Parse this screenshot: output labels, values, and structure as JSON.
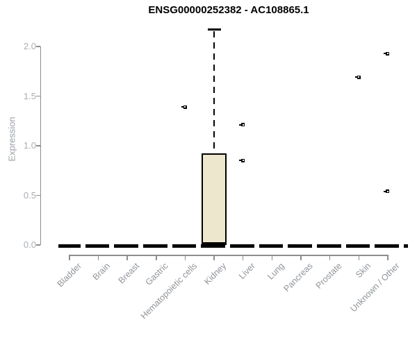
{
  "chart_data": {
    "type": "boxplot",
    "title": "ENSG00000252382 - AC108865.1",
    "ylabel": "Expression",
    "ylim": [
      0,
      2.2
    ],
    "yticks": [
      "0.0",
      "0.5",
      "1.0",
      "1.5",
      "2.0"
    ],
    "grid": false,
    "legend": "none",
    "categories": [
      "Bladder",
      "Brain",
      "Breast",
      "Gastric",
      "Hematopoietic cells",
      "Kidney",
      "Liver",
      "Lung",
      "Pancreas",
      "Prostate",
      "Skin",
      "Unknown / Other"
    ],
    "boxes": [
      {
        "category": "Bladder",
        "whisker_low": 0,
        "q1": 0,
        "median": 0,
        "q3": 0,
        "whisker_high": 0,
        "outliers": []
      },
      {
        "category": "Brain",
        "whisker_low": 0,
        "q1": 0,
        "median": 0,
        "q3": 0,
        "whisker_high": 0,
        "outliers": []
      },
      {
        "category": "Breast",
        "whisker_low": 0,
        "q1": 0,
        "median": 0,
        "q3": 0,
        "whisker_high": 0,
        "outliers": []
      },
      {
        "category": "Gastric",
        "whisker_low": 0,
        "q1": 0,
        "median": 0,
        "q3": 0,
        "whisker_high": 0,
        "outliers": []
      },
      {
        "category": "Hematopoietic cells",
        "whisker_low": 0,
        "q1": 0,
        "median": 0,
        "q3": 0,
        "whisker_high": 0,
        "outliers": [
          1.39
        ]
      },
      {
        "category": "Kidney",
        "whisker_low": 0,
        "q1": 0,
        "median": 0,
        "q3": 0.92,
        "whisker_high": 2.17,
        "outliers": []
      },
      {
        "category": "Liver",
        "whisker_low": 0,
        "q1": 0,
        "median": 0,
        "q3": 0,
        "whisker_high": 0,
        "outliers": [
          1.21,
          0.85
        ]
      },
      {
        "category": "Lung",
        "whisker_low": 0,
        "q1": 0,
        "median": 0,
        "q3": 0,
        "whisker_high": 0,
        "outliers": []
      },
      {
        "category": "Pancreas",
        "whisker_low": 0,
        "q1": 0,
        "median": 0,
        "q3": 0,
        "whisker_high": 0,
        "outliers": []
      },
      {
        "category": "Prostate",
        "whisker_low": 0,
        "q1": 0,
        "median": 0,
        "q3": 0,
        "whisker_high": 0,
        "outliers": []
      },
      {
        "category": "Skin",
        "whisker_low": 0,
        "q1": 0,
        "median": 0,
        "q3": 0,
        "whisker_high": 0,
        "outliers": [
          1.69
        ]
      },
      {
        "category": "Unknown / Other",
        "whisker_low": 0,
        "q1": 0,
        "median": 0,
        "q3": 0,
        "whisker_high": 0,
        "outliers": [
          1.93,
          0.54
        ]
      }
    ],
    "colors": {
      "box_fill": "#ece7cd",
      "box_border": "#000000",
      "axis": "#8c8c8c",
      "y_tick_label": "#a8aeb4",
      "x_tick_label": "#8f9499",
      "y_axis_title": "#9aa0a5",
      "title": "#000000"
    }
  }
}
